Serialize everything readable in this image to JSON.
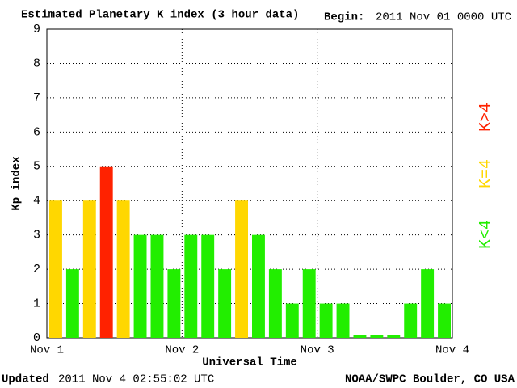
{
  "chart_data": {
    "type": "bar",
    "title": "Estimated Planetary K index (3 hour data)",
    "begin_label": "Begin:",
    "begin_value": "2011 Nov 01 0000 UTC",
    "ylabel": "Kp index",
    "xlabel": "Universal Time",
    "updated_label": "Updated",
    "updated_value": "2011 Nov  4 02:55:02 UTC",
    "credit": "NOAA/SWPC Boulder, CO USA",
    "values": [
      4,
      2,
      4,
      5,
      4,
      3,
      3,
      2,
      3,
      3,
      2,
      4,
      3,
      2,
      1,
      2,
      1,
      1,
      0,
      0,
      0,
      1,
      2,
      1
    ],
    "colors": [
      "#ffd700",
      "#22ee00",
      "#ffd700",
      "#ff2200",
      "#ffd700",
      "#22ee00",
      "#22ee00",
      "#22ee00",
      "#22ee00",
      "#22ee00",
      "#22ee00",
      "#ffd700",
      "#22ee00",
      "#22ee00",
      "#22ee00",
      "#22ee00",
      "#22ee00",
      "#22ee00",
      "#22ee00",
      "#22ee00",
      "#22ee00",
      "#22ee00",
      "#22ee00",
      "#22ee00"
    ],
    "legend": [
      {
        "name": "K<4",
        "color": "#22ee00"
      },
      {
        "name": "K=4",
        "color": "#ffd700"
      },
      {
        "name": "K>4",
        "color": "#ff2200"
      }
    ],
    "ylim": [
      0,
      9
    ],
    "yticks": [
      0,
      1,
      2,
      3,
      4,
      5,
      6,
      7,
      8,
      9
    ],
    "xlim": [
      0,
      3
    ],
    "xticks": [
      {
        "value": 0,
        "label": "Nov 1"
      },
      {
        "value": 1,
        "label": "Nov 2"
      },
      {
        "value": 2,
        "label": "Nov 3"
      },
      {
        "value": 3,
        "label": "Nov 4"
      }
    ],
    "grid": true
  }
}
